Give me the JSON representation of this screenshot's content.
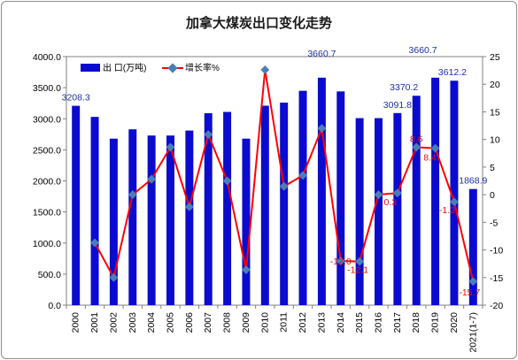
{
  "chart_data": {
    "type": "bar+line",
    "title": "加拿大煤炭出口变化走势",
    "categories": [
      "2000",
      "2001",
      "2002",
      "2003",
      "2004",
      "2005",
      "2006",
      "2007",
      "2008",
      "2009",
      "2010",
      "2011",
      "2012",
      "2013",
      "2014",
      "2015",
      "2016",
      "2017",
      "2018",
      "2019",
      "2020",
      "2021(1-7)"
    ],
    "series": [
      {
        "name": "出 口(万吨)",
        "type": "bar",
        "axis": "left",
        "color": "#0b0bcf",
        "values": [
          3208.3,
          3030,
          2680,
          2830,
          2730,
          2730,
          2810,
          3090,
          3110,
          2680,
          3210,
          3260,
          3450,
          3660.7,
          3440,
          3010,
          3010,
          3091.8,
          3370.2,
          3660.7,
          3612.2,
          1868.9
        ],
        "labels": [
          {
            "index": 0,
            "text": "3208.3"
          },
          {
            "index": 13,
            "text": "3660.7"
          },
          {
            "index": 17,
            "text": "3091.8"
          },
          {
            "index": 18,
            "text": "3370.2"
          },
          {
            "index": 19,
            "text": "3660.7"
          },
          {
            "index": 20,
            "text": "3612.2"
          },
          {
            "index": 21,
            "text": "1868.9"
          }
        ]
      },
      {
        "name": "增长率%",
        "type": "line",
        "axis": "right",
        "color": "#ff0000",
        "marker_color": "#4a7fb5",
        "values": [
          null,
          -8.7,
          -15.0,
          0.0,
          2.8,
          8.6,
          -2.2,
          10.9,
          2.5,
          -13.6,
          22.6,
          1.5,
          3.5,
          12.0,
          -12.0,
          -12.1,
          0.0,
          0.3,
          8.6,
          8.4,
          -1.3,
          -15.7
        ],
        "labels": [
          {
            "index": 14,
            "text": "-12.0"
          },
          {
            "index": 15,
            "text": "-12.1"
          },
          {
            "index": 17,
            "text": "0.3"
          },
          {
            "index": 18,
            "text": "8.6"
          },
          {
            "index": 19,
            "text": "8.4"
          },
          {
            "index": 20,
            "text": "-1.3"
          },
          {
            "index": 21,
            "text": "-15.7"
          }
        ]
      }
    ],
    "y_left": {
      "min": 0,
      "max": 4000,
      "step": 500,
      "tick_labels": [
        "0.0",
        "500.0",
        "1000.0",
        "1500.0",
        "2000.0",
        "2500.0",
        "3000.0",
        "3500.0",
        "4000.0"
      ]
    },
    "y_right": {
      "min": -20,
      "max": 25,
      "step": 5,
      "tick_labels": [
        "-20",
        "-15",
        "-10",
        "-5",
        "0",
        "5",
        "10",
        "15",
        "20",
        "25"
      ]
    },
    "legend": "top-left",
    "grid": false
  }
}
